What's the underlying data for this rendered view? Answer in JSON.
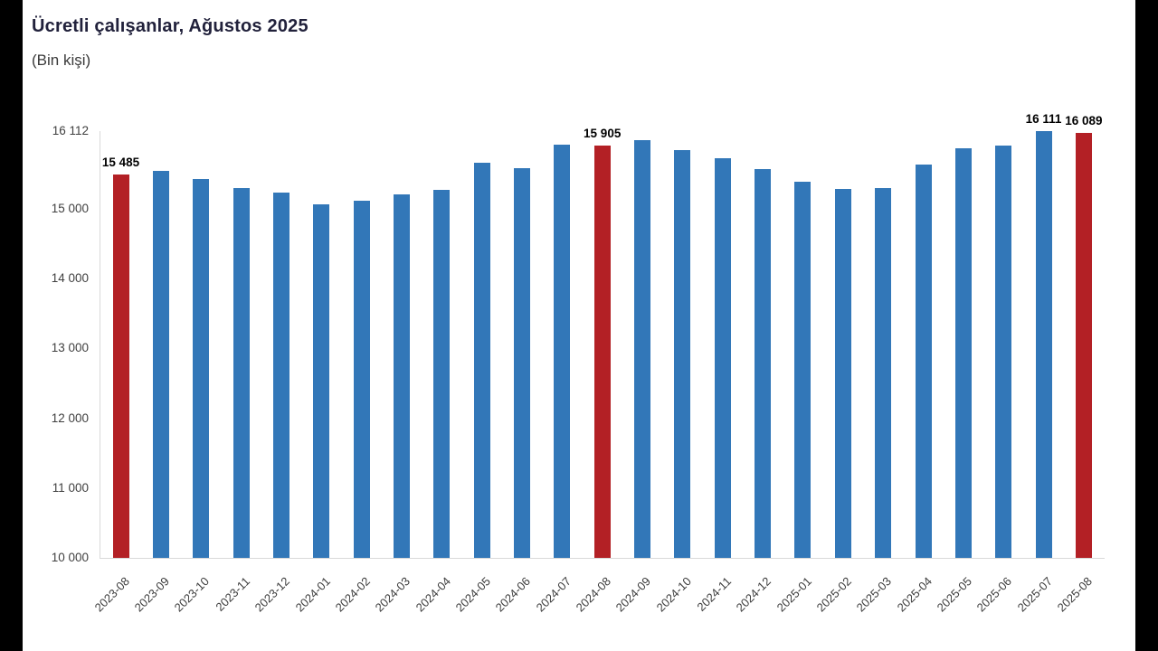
{
  "header": {
    "title": "Ücretli çalışanlar, Ağustos 2025",
    "subtitle": "(Bin kişi)"
  },
  "colors": {
    "bar_default": "#3277b8",
    "bar_highlight": "#b32025",
    "axis_line": "#d9d9d9",
    "tick_text": "#3f3f3f",
    "data_label_text": "#000000",
    "title_text": "#21213b",
    "background": "#ffffff",
    "frame": "#000000"
  },
  "chart_data": {
    "type": "bar",
    "title": "Ücretli çalışanlar, Ağustos 2025",
    "subtitle": "(Bin kişi)",
    "xlabel": "",
    "ylabel": "",
    "ylim": [
      10000,
      16112
    ],
    "grid": "off",
    "legend": "none",
    "y_ticks": [
      {
        "value": 16112,
        "label": "16 112"
      },
      {
        "value": 15000,
        "label": "15 000"
      },
      {
        "value": 14000,
        "label": "14 000"
      },
      {
        "value": 13000,
        "label": "13 000"
      },
      {
        "value": 12000,
        "label": "12 000"
      },
      {
        "value": 11000,
        "label": "11 000"
      },
      {
        "value": 10000,
        "label": "10 000"
      }
    ],
    "points": [
      {
        "month": "2023-08",
        "value": 15485,
        "highlighted": true,
        "data_label": "15 485"
      },
      {
        "month": "2023-09",
        "value": 15540,
        "highlighted": false
      },
      {
        "month": "2023-10",
        "value": 15425,
        "highlighted": false
      },
      {
        "month": "2023-11",
        "value": 15290,
        "highlighted": false
      },
      {
        "month": "2023-12",
        "value": 15230,
        "highlighted": false
      },
      {
        "month": "2024-01",
        "value": 15065,
        "highlighted": false
      },
      {
        "month": "2024-02",
        "value": 15110,
        "highlighted": false
      },
      {
        "month": "2024-03",
        "value": 15205,
        "highlighted": false
      },
      {
        "month": "2024-04",
        "value": 15265,
        "highlighted": false
      },
      {
        "month": "2024-05",
        "value": 15660,
        "highlighted": false
      },
      {
        "month": "2024-06",
        "value": 15580,
        "highlighted": false
      },
      {
        "month": "2024-07",
        "value": 15915,
        "highlighted": false
      },
      {
        "month": "2024-08",
        "value": 15905,
        "highlighted": true,
        "data_label": "15 905"
      },
      {
        "month": "2024-09",
        "value": 15985,
        "highlighted": false
      },
      {
        "month": "2024-10",
        "value": 15845,
        "highlighted": false
      },
      {
        "month": "2024-11",
        "value": 15725,
        "highlighted": false
      },
      {
        "month": "2024-12",
        "value": 15570,
        "highlighted": false
      },
      {
        "month": "2025-01",
        "value": 15390,
        "highlighted": false
      },
      {
        "month": "2025-02",
        "value": 15280,
        "highlighted": false
      },
      {
        "month": "2025-03",
        "value": 15300,
        "highlighted": false
      },
      {
        "month": "2025-04",
        "value": 15630,
        "highlighted": false
      },
      {
        "month": "2025-05",
        "value": 15870,
        "highlighted": false
      },
      {
        "month": "2025-06",
        "value": 15900,
        "highlighted": false
      },
      {
        "month": "2025-07",
        "value": 16111,
        "highlighted": false,
        "data_label": "16 111"
      },
      {
        "month": "2025-08",
        "value": 16089,
        "highlighted": true,
        "data_label": "16 089"
      }
    ]
  }
}
